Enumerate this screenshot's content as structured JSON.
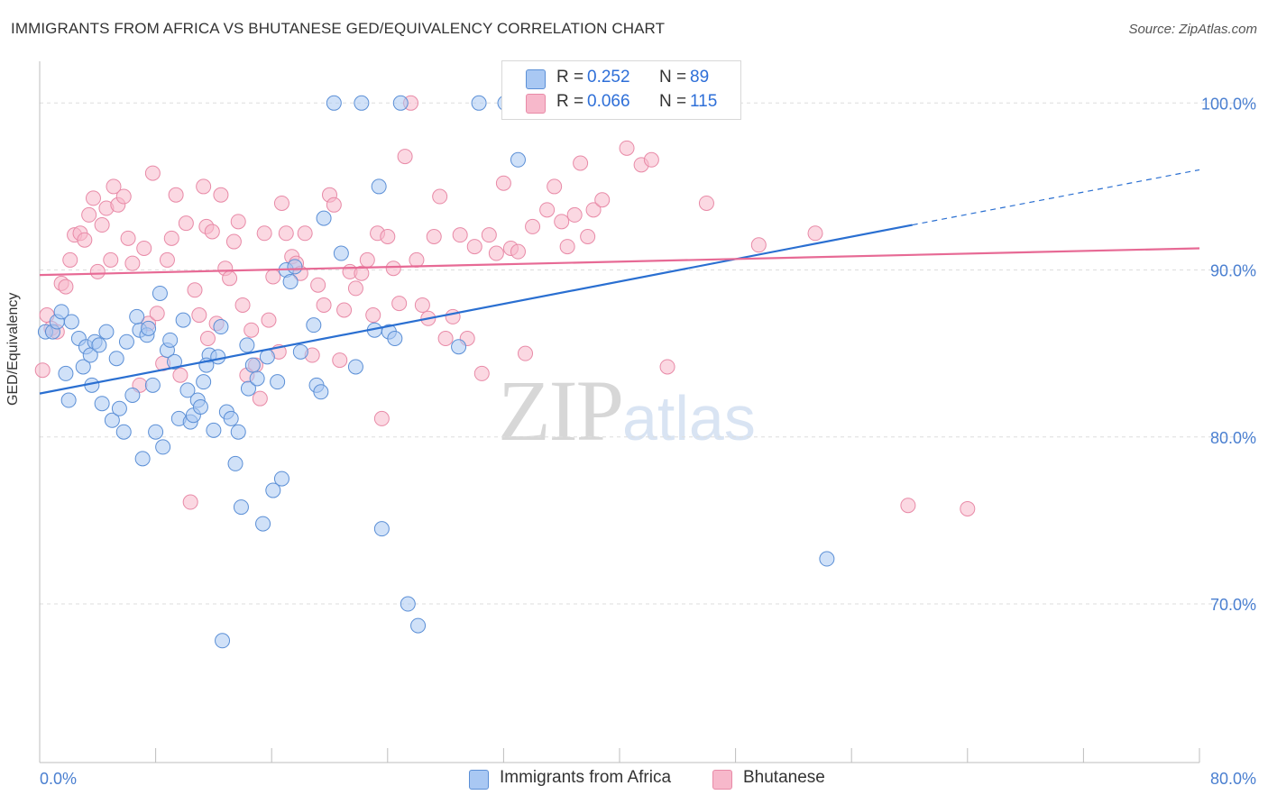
{
  "header": {
    "title": "IMMIGRANTS FROM AFRICA VS BHUTANESE GED/EQUIVALENCY CORRELATION CHART",
    "source": "Source: ZipAtlas.com"
  },
  "watermark": {
    "zip": "ZIP",
    "atlas": "atlas"
  },
  "legend_top": {
    "rows": [
      {
        "r_label": "R =",
        "r_value": "0.252",
        "n_label": "N =",
        "n_value": "89",
        "color": "#a9c8f3"
      },
      {
        "r_label": "R =",
        "r_value": "0.066",
        "n_label": "N =",
        "n_value": "115",
        "color": "#f7b8cb"
      }
    ]
  },
  "legend_bottom": {
    "items": [
      {
        "label": "Immigrants from Africa",
        "color": "#a9c8f3"
      },
      {
        "label": "Bhutanese",
        "color": "#f7b8cb"
      }
    ]
  },
  "chart_data": {
    "type": "scatter",
    "title": "IMMIGRANTS FROM AFRICA VS BHUTANESE GED/EQUIVALENCY CORRELATION CHART",
    "xlabel": "",
    "ylabel": "GED/Equivalency",
    "xlim": [
      0,
      80
    ],
    "ylim": [
      60.5,
      102.5
    ],
    "x_tick_labels": [
      "0.0%",
      "80.0%"
    ],
    "y_ticks": [
      70,
      80,
      90,
      100
    ],
    "y_tick_labels": [
      "70.0%",
      "80.0%",
      "90.0%",
      "100.0%"
    ],
    "grid": true,
    "legend_placement": "bottom-center",
    "colors": {
      "africa_fill": "#a9c8f3",
      "africa_stroke": "#5b8fd6",
      "africa_line": "#2a6fd1",
      "bhutan_fill": "#f7b8cb",
      "bhutan_stroke": "#e88aa7",
      "bhutan_line": "#e76a95",
      "tick_label": "#4a7fd0",
      "grid": "#dedede"
    },
    "series": [
      {
        "name": "Immigrants from Africa",
        "trend": {
          "x0": 0.0,
          "y0": 82.6,
          "x1": 60.2,
          "y1": 92.7,
          "dash_to_x": 80.0,
          "dash_to_y": 96.0
        },
        "points": [
          [
            0.4,
            86.3
          ],
          [
            0.9,
            86.3
          ],
          [
            1.2,
            86.9
          ],
          [
            1.5,
            87.5
          ],
          [
            1.8,
            83.8
          ],
          [
            2.2,
            86.9
          ],
          [
            2.7,
            85.9
          ],
          [
            3.0,
            84.2
          ],
          [
            3.2,
            85.4
          ],
          [
            3.5,
            84.9
          ],
          [
            3.8,
            85.7
          ],
          [
            4.1,
            85.5
          ],
          [
            4.3,
            82.0
          ],
          [
            4.6,
            86.3
          ],
          [
            5.0,
            81.0
          ],
          [
            5.3,
            84.7
          ],
          [
            5.5,
            81.7
          ],
          [
            5.8,
            80.3
          ],
          [
            6.0,
            85.7
          ],
          [
            6.4,
            82.5
          ],
          [
            6.9,
            86.4
          ],
          [
            7.1,
            78.7
          ],
          [
            7.4,
            86.1
          ],
          [
            7.8,
            83.1
          ],
          [
            8.0,
            80.3
          ],
          [
            8.3,
            88.6
          ],
          [
            8.5,
            79.4
          ],
          [
            8.8,
            85.2
          ],
          [
            9.0,
            85.8
          ],
          [
            9.3,
            84.5
          ],
          [
            9.6,
            81.1
          ],
          [
            9.9,
            87.0
          ],
          [
            10.2,
            82.8
          ],
          [
            10.4,
            80.9
          ],
          [
            10.6,
            81.3
          ],
          [
            10.9,
            82.2
          ],
          [
            11.1,
            81.8
          ],
          [
            11.3,
            83.3
          ],
          [
            11.7,
            84.9
          ],
          [
            12.0,
            80.4
          ],
          [
            12.3,
            84.8
          ],
          [
            12.5,
            86.6
          ],
          [
            12.9,
            81.5
          ],
          [
            13.2,
            81.1
          ],
          [
            13.5,
            78.4
          ],
          [
            13.7,
            80.3
          ],
          [
            13.9,
            75.8
          ],
          [
            14.3,
            85.5
          ],
          [
            14.4,
            82.9
          ],
          [
            14.7,
            84.3
          ],
          [
            15.0,
            83.5
          ],
          [
            15.4,
            74.8
          ],
          [
            15.7,
            84.8
          ],
          [
            16.1,
            76.8
          ],
          [
            16.4,
            83.3
          ],
          [
            16.7,
            77.5
          ],
          [
            17.0,
            90.0
          ],
          [
            17.3,
            89.3
          ],
          [
            17.6,
            90.2
          ],
          [
            18.9,
            86.7
          ],
          [
            19.1,
            83.1
          ],
          [
            19.4,
            82.7
          ],
          [
            19.6,
            93.1
          ],
          [
            20.3,
            100.0
          ],
          [
            20.8,
            91.0
          ],
          [
            21.8,
            84.2
          ],
          [
            22.2,
            100.0
          ],
          [
            23.1,
            86.4
          ],
          [
            23.4,
            95.0
          ],
          [
            23.6,
            74.5
          ],
          [
            24.1,
            86.3
          ],
          [
            24.5,
            85.9
          ],
          [
            24.9,
            100.0
          ],
          [
            25.4,
            70.0
          ],
          [
            26.1,
            68.7
          ],
          [
            28.9,
            85.4
          ],
          [
            30.3,
            100.0
          ],
          [
            32.1,
            100.0
          ],
          [
            33.0,
            96.6
          ],
          [
            34.0,
            100.0
          ],
          [
            34.8,
            100.0
          ],
          [
            54.3,
            72.7
          ],
          [
            12.6,
            67.8
          ],
          [
            11.5,
            84.3
          ],
          [
            7.5,
            86.5
          ],
          [
            2.0,
            82.2
          ],
          [
            6.7,
            87.2
          ],
          [
            18.0,
            85.1
          ],
          [
            3.6,
            83.1
          ]
        ]
      },
      {
        "name": "Bhutanese",
        "trend": {
          "x0": 0.0,
          "y0": 89.7,
          "x1": 80.0,
          "y1": 91.3
        },
        "points": [
          [
            0.2,
            84.0
          ],
          [
            0.5,
            87.3
          ],
          [
            0.8,
            86.5
          ],
          [
            1.2,
            86.3
          ],
          [
            1.5,
            89.2
          ],
          [
            1.8,
            89.0
          ],
          [
            2.1,
            90.6
          ],
          [
            2.4,
            92.1
          ],
          [
            2.8,
            92.2
          ],
          [
            3.1,
            91.8
          ],
          [
            3.4,
            93.3
          ],
          [
            3.7,
            94.3
          ],
          [
            4.0,
            89.9
          ],
          [
            4.3,
            92.7
          ],
          [
            4.6,
            93.7
          ],
          [
            4.9,
            90.6
          ],
          [
            5.1,
            95.0
          ],
          [
            5.4,
            93.9
          ],
          [
            5.8,
            94.4
          ],
          [
            6.1,
            91.9
          ],
          [
            6.4,
            90.4
          ],
          [
            6.9,
            83.1
          ],
          [
            7.2,
            91.3
          ],
          [
            7.5,
            86.8
          ],
          [
            7.8,
            95.8
          ],
          [
            8.1,
            87.4
          ],
          [
            8.5,
            84.4
          ],
          [
            8.8,
            90.6
          ],
          [
            9.1,
            91.9
          ],
          [
            9.4,
            94.5
          ],
          [
            9.7,
            83.7
          ],
          [
            10.1,
            92.8
          ],
          [
            10.4,
            76.1
          ],
          [
            10.7,
            88.8
          ],
          [
            11.0,
            87.3
          ],
          [
            11.3,
            95.0
          ],
          [
            11.5,
            92.6
          ],
          [
            11.9,
            92.3
          ],
          [
            12.2,
            86.8
          ],
          [
            12.5,
            94.5
          ],
          [
            12.8,
            90.1
          ],
          [
            13.1,
            89.5
          ],
          [
            13.4,
            91.7
          ],
          [
            13.7,
            92.9
          ],
          [
            14.0,
            87.9
          ],
          [
            14.3,
            83.7
          ],
          [
            14.6,
            86.4
          ],
          [
            14.9,
            84.3
          ],
          [
            15.2,
            82.3
          ],
          [
            15.5,
            92.2
          ],
          [
            15.8,
            87.0
          ],
          [
            16.1,
            89.6
          ],
          [
            16.5,
            85.1
          ],
          [
            16.7,
            94.0
          ],
          [
            17.0,
            92.2
          ],
          [
            17.4,
            90.8
          ],
          [
            17.7,
            90.4
          ],
          [
            18.0,
            89.8
          ],
          [
            18.3,
            92.2
          ],
          [
            18.8,
            84.9
          ],
          [
            19.2,
            89.1
          ],
          [
            19.6,
            87.9
          ],
          [
            20.0,
            94.5
          ],
          [
            20.3,
            93.9
          ],
          [
            20.7,
            84.6
          ],
          [
            21.0,
            87.6
          ],
          [
            21.4,
            89.9
          ],
          [
            21.8,
            88.9
          ],
          [
            22.2,
            89.8
          ],
          [
            22.6,
            90.6
          ],
          [
            23.0,
            87.3
          ],
          [
            23.3,
            92.2
          ],
          [
            23.6,
            81.1
          ],
          [
            24.0,
            92.0
          ],
          [
            24.4,
            90.1
          ],
          [
            24.8,
            88.0
          ],
          [
            25.2,
            96.8
          ],
          [
            25.6,
            100.0
          ],
          [
            26.0,
            90.6
          ],
          [
            26.4,
            87.9
          ],
          [
            26.8,
            87.1
          ],
          [
            27.2,
            92.0
          ],
          [
            27.6,
            94.4
          ],
          [
            28.0,
            85.9
          ],
          [
            28.5,
            87.2
          ],
          [
            29.0,
            92.1
          ],
          [
            29.5,
            85.9
          ],
          [
            30.0,
            91.4
          ],
          [
            30.5,
            83.8
          ],
          [
            31.0,
            92.1
          ],
          [
            31.5,
            91.0
          ],
          [
            32.0,
            95.2
          ],
          [
            32.5,
            91.3
          ],
          [
            33.0,
            91.1
          ],
          [
            33.5,
            85.0
          ],
          [
            34.0,
            92.6
          ],
          [
            35.0,
            93.6
          ],
          [
            35.5,
            95.0
          ],
          [
            36.0,
            92.9
          ],
          [
            36.4,
            91.4
          ],
          [
            36.9,
            93.3
          ],
          [
            37.3,
            96.4
          ],
          [
            37.8,
            92.0
          ],
          [
            38.2,
            93.6
          ],
          [
            38.8,
            94.2
          ],
          [
            40.5,
            97.3
          ],
          [
            41.5,
            96.3
          ],
          [
            42.2,
            96.6
          ],
          [
            43.3,
            84.2
          ],
          [
            46.0,
            94.0
          ],
          [
            49.6,
            91.5
          ],
          [
            53.5,
            92.2
          ],
          [
            59.9,
            75.9
          ],
          [
            64.0,
            75.7
          ],
          [
            11.6,
            85.9
          ]
        ]
      }
    ]
  }
}
